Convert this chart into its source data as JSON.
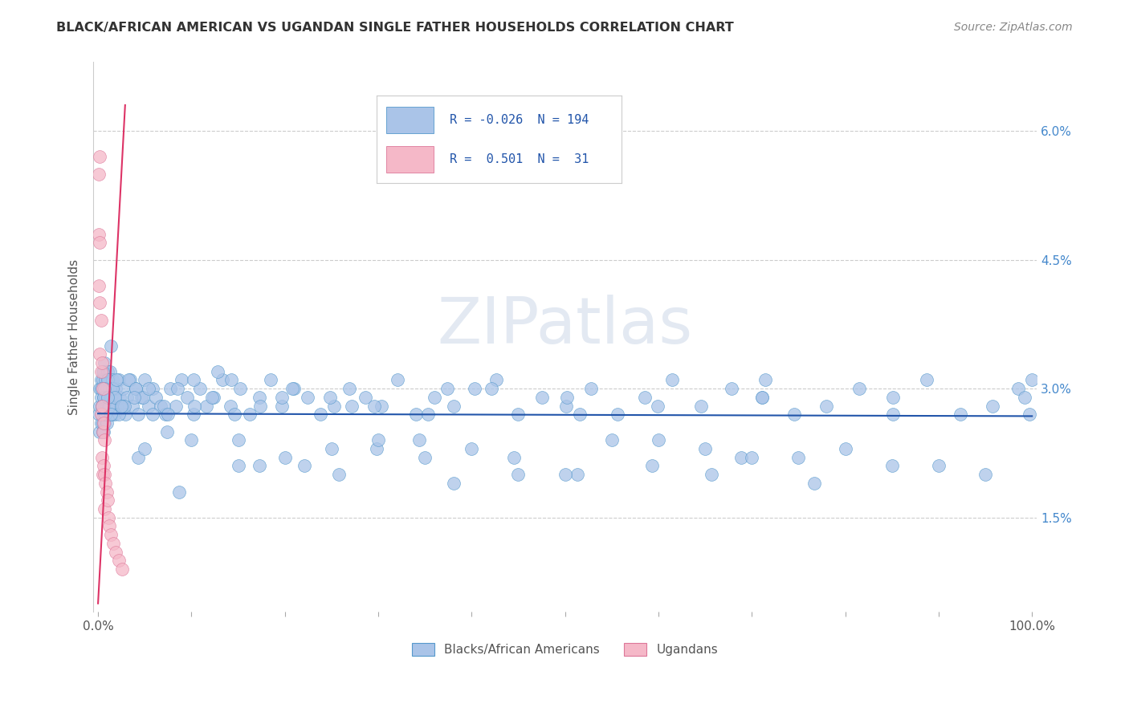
{
  "title": "BLACK/AFRICAN AMERICAN VS UGANDAN SINGLE FATHER HOUSEHOLDS CORRELATION CHART",
  "source": "Source: ZipAtlas.com",
  "ylabel": "Single Father Households",
  "ytick_labels": [
    "1.5%",
    "3.0%",
    "4.5%",
    "6.0%"
  ],
  "ytick_values": [
    0.015,
    0.03,
    0.045,
    0.06
  ],
  "watermark": "ZIPatlas",
  "blue_R": "-0.026",
  "blue_N": "194",
  "pink_R": "0.501",
  "pink_N": "31",
  "blue_color": "#aac4e8",
  "blue_edge_color": "#5599cc",
  "blue_line_color": "#2255aa",
  "pink_color": "#f5b8c8",
  "pink_edge_color": "#dd7799",
  "pink_line_color": "#dd3366",
  "xlim": [
    0.0,
    1.0
  ],
  "ylim": [
    0.005,
    0.065
  ],
  "blue_line_y_intercept": 0.0271,
  "blue_line_slope": -0.0003,
  "pink_line_y_intercept": 0.005,
  "pink_line_slope": 2.0,
  "blue_x": [
    0.001,
    0.002,
    0.002,
    0.002,
    0.003,
    0.003,
    0.003,
    0.004,
    0.004,
    0.005,
    0.005,
    0.005,
    0.005,
    0.006,
    0.006,
    0.006,
    0.006,
    0.007,
    0.007,
    0.007,
    0.007,
    0.008,
    0.008,
    0.008,
    0.009,
    0.009,
    0.009,
    0.01,
    0.01,
    0.01,
    0.011,
    0.011,
    0.012,
    0.012,
    0.013,
    0.013,
    0.014,
    0.015,
    0.015,
    0.016,
    0.017,
    0.018,
    0.019,
    0.02,
    0.022,
    0.023,
    0.025,
    0.027,
    0.029,
    0.031,
    0.034,
    0.037,
    0.04,
    0.043,
    0.046,
    0.05,
    0.054,
    0.058,
    0.062,
    0.067,
    0.072,
    0.077,
    0.083,
    0.089,
    0.095,
    0.102,
    0.109,
    0.116,
    0.124,
    0.133,
    0.142,
    0.152,
    0.162,
    0.173,
    0.185,
    0.197,
    0.21,
    0.224,
    0.238,
    0.253,
    0.269,
    0.286,
    0.303,
    0.321,
    0.34,
    0.36,
    0.381,
    0.403,
    0.426,
    0.45,
    0.475,
    0.501,
    0.528,
    0.556,
    0.585,
    0.615,
    0.646,
    0.678,
    0.711,
    0.745,
    0.78,
    0.815,
    0.851,
    0.887,
    0.923,
    0.958,
    0.985,
    0.992,
    0.997,
    1.0,
    0.003,
    0.004,
    0.005,
    0.006,
    0.008,
    0.01,
    0.012,
    0.015,
    0.018,
    0.022,
    0.027,
    0.033,
    0.04,
    0.048,
    0.058,
    0.07,
    0.085,
    0.102,
    0.122,
    0.146,
    0.174,
    0.208,
    0.248,
    0.296,
    0.353,
    0.421,
    0.502,
    0.599,
    0.714,
    0.851,
    0.004,
    0.007,
    0.01,
    0.014,
    0.02,
    0.028,
    0.039,
    0.054,
    0.075,
    0.103,
    0.143,
    0.197,
    0.272,
    0.374,
    0.516,
    0.711,
    0.014,
    0.025,
    0.043,
    0.074,
    0.128,
    0.221,
    0.381,
    0.657,
    0.05,
    0.087,
    0.15,
    0.258,
    0.445,
    0.767,
    0.1,
    0.173,
    0.298,
    0.513,
    0.2,
    0.344,
    0.593,
    0.4,
    0.689,
    0.6,
    0.8,
    0.9,
    0.7,
    0.5,
    0.3,
    0.15,
    0.25,
    0.35,
    0.45,
    0.55,
    0.65,
    0.75,
    0.85,
    0.95
  ],
  "blue_y": [
    0.027,
    0.025,
    0.028,
    0.03,
    0.026,
    0.029,
    0.031,
    0.027,
    0.03,
    0.025,
    0.028,
    0.031,
    0.026,
    0.027,
    0.029,
    0.032,
    0.025,
    0.028,
    0.03,
    0.026,
    0.033,
    0.027,
    0.029,
    0.031,
    0.028,
    0.03,
    0.026,
    0.027,
    0.029,
    0.032,
    0.028,
    0.031,
    0.027,
    0.03,
    0.028,
    0.032,
    0.029,
    0.027,
    0.031,
    0.028,
    0.029,
    0.027,
    0.03,
    0.028,
    0.031,
    0.029,
    0.028,
    0.03,
    0.027,
    0.029,
    0.031,
    0.028,
    0.03,
    0.027,
    0.029,
    0.031,
    0.028,
    0.03,
    0.029,
    0.028,
    0.027,
    0.03,
    0.028,
    0.031,
    0.029,
    0.027,
    0.03,
    0.028,
    0.029,
    0.031,
    0.028,
    0.03,
    0.027,
    0.029,
    0.031,
    0.028,
    0.03,
    0.029,
    0.027,
    0.028,
    0.03,
    0.029,
    0.028,
    0.031,
    0.027,
    0.029,
    0.028,
    0.03,
    0.031,
    0.027,
    0.029,
    0.028,
    0.03,
    0.027,
    0.029,
    0.031,
    0.028,
    0.03,
    0.029,
    0.027,
    0.028,
    0.03,
    0.029,
    0.031,
    0.027,
    0.028,
    0.03,
    0.029,
    0.027,
    0.031,
    0.03,
    0.028,
    0.032,
    0.029,
    0.027,
    0.031,
    0.028,
    0.03,
    0.029,
    0.027,
    0.028,
    0.031,
    0.03,
    0.029,
    0.027,
    0.028,
    0.03,
    0.031,
    0.029,
    0.027,
    0.028,
    0.03,
    0.029,
    0.028,
    0.027,
    0.03,
    0.029,
    0.028,
    0.031,
    0.027,
    0.028,
    0.03,
    0.029,
    0.027,
    0.031,
    0.028,
    0.029,
    0.03,
    0.027,
    0.028,
    0.031,
    0.029,
    0.028,
    0.03,
    0.027,
    0.029,
    0.035,
    0.028,
    0.022,
    0.025,
    0.032,
    0.021,
    0.019,
    0.02,
    0.023,
    0.018,
    0.024,
    0.02,
    0.022,
    0.019,
    0.024,
    0.021,
    0.023,
    0.02,
    0.022,
    0.024,
    0.021,
    0.023,
    0.022,
    0.024,
    0.023,
    0.021,
    0.022,
    0.02,
    0.024,
    0.021,
    0.023,
    0.022,
    0.02,
    0.024,
    0.023,
    0.022,
    0.021,
    0.02
  ],
  "pink_x": [
    0.001,
    0.001,
    0.001,
    0.002,
    0.002,
    0.002,
    0.002,
    0.003,
    0.003,
    0.003,
    0.004,
    0.004,
    0.004,
    0.005,
    0.005,
    0.005,
    0.006,
    0.006,
    0.007,
    0.007,
    0.007,
    0.008,
    0.009,
    0.01,
    0.011,
    0.012,
    0.014,
    0.016,
    0.019,
    0.022,
    0.026
  ],
  "pink_y": [
    0.055,
    0.048,
    0.042,
    0.057,
    0.047,
    0.04,
    0.034,
    0.038,
    0.032,
    0.027,
    0.033,
    0.028,
    0.022,
    0.03,
    0.025,
    0.02,
    0.026,
    0.021,
    0.024,
    0.02,
    0.016,
    0.019,
    0.018,
    0.017,
    0.015,
    0.014,
    0.013,
    0.012,
    0.011,
    0.01,
    0.009
  ]
}
